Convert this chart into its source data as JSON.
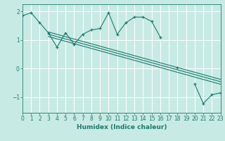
{
  "xlabel": "Humidex (Indice chaleur)",
  "x": [
    0,
    1,
    2,
    3,
    4,
    5,
    6,
    7,
    8,
    9,
    10,
    11,
    12,
    13,
    14,
    15,
    16,
    17,
    18,
    19,
    20,
    21,
    22,
    23
  ],
  "y_data": [
    1.85,
    1.95,
    1.6,
    1.25,
    0.75,
    1.25,
    0.85,
    1.2,
    1.35,
    1.4,
    1.95,
    1.2,
    1.6,
    1.8,
    1.8,
    1.65,
    1.1,
    null,
    0.02,
    null,
    -0.55,
    -1.22,
    -0.92,
    -0.85
  ],
  "trend1_x": [
    3,
    23
  ],
  "trend1_y": [
    1.28,
    -0.38
  ],
  "trend2_x": [
    3,
    23
  ],
  "trend2_y": [
    1.12,
    -0.55
  ],
  "trend3_x": [
    3,
    23
  ],
  "trend3_y": [
    1.2,
    -0.46
  ],
  "bg_color": "#c8eae4",
  "line_color": "#1a7a6e",
  "grid_color": "#ffffff",
  "xlim": [
    0,
    23
  ],
  "ylim": [
    -1.55,
    2.25
  ],
  "yticks": [
    -1,
    0,
    1,
    2
  ],
  "xticks": [
    0,
    1,
    2,
    3,
    4,
    5,
    6,
    7,
    8,
    9,
    10,
    11,
    12,
    13,
    14,
    15,
    16,
    17,
    18,
    19,
    20,
    21,
    22,
    23
  ]
}
